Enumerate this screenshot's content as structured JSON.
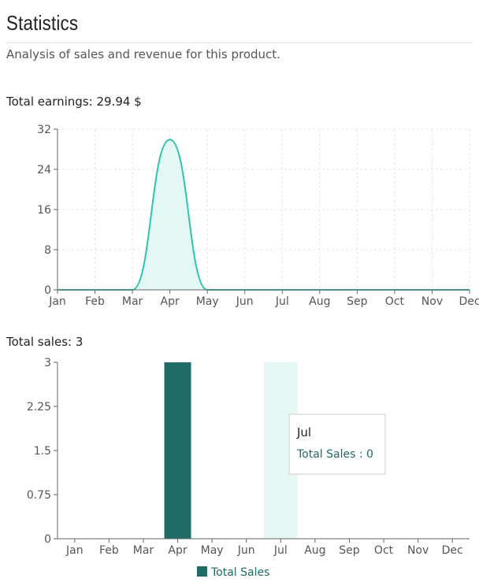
{
  "page": {
    "title": "Statistics",
    "subtitle": "Analysis of sales and revenue for this product."
  },
  "earnings": {
    "label": "Total earnings: 29.94 $"
  },
  "sales": {
    "label": "Total sales: 3"
  },
  "tooltip": {
    "month": "Jul",
    "text": "Total Sales : 0"
  },
  "colors": {
    "line": "#2ec4b0",
    "area": "#e3f8f5",
    "bar": "#1f6b68",
    "hover": "#e3f8f5"
  },
  "chart_data": [
    {
      "type": "area",
      "x": [
        "Jan",
        "Feb",
        "Mar",
        "Apr",
        "May",
        "Jun",
        "Jul",
        "Aug",
        "Sep",
        "Oct",
        "Nov",
        "Dec"
      ],
      "values": [
        0,
        0,
        0,
        29.94,
        0,
        0,
        0,
        0,
        0,
        0,
        0,
        0
      ],
      "ylim": [
        0,
        32
      ],
      "yticks": [
        0,
        8,
        16,
        24,
        32
      ],
      "grid": true,
      "title": "",
      "xlabel": "",
      "ylabel": ""
    },
    {
      "type": "bar",
      "categories": [
        "Jan",
        "Feb",
        "Mar",
        "Apr",
        "May",
        "Jun",
        "Jul",
        "Aug",
        "Sep",
        "Oct",
        "Nov",
        "Dec"
      ],
      "series": [
        {
          "name": "Total Sales",
          "values": [
            0,
            0,
            0,
            3,
            0,
            0,
            0,
            0,
            0,
            0,
            0,
            0
          ]
        }
      ],
      "ylim": [
        0,
        3
      ],
      "yticks": [
        "0",
        "0.75",
        "1.5",
        "2.25",
        "3"
      ],
      "highlighted_category": "Jul",
      "legend": "bottom",
      "grid": false,
      "title": "",
      "xlabel": "",
      "ylabel": ""
    }
  ]
}
